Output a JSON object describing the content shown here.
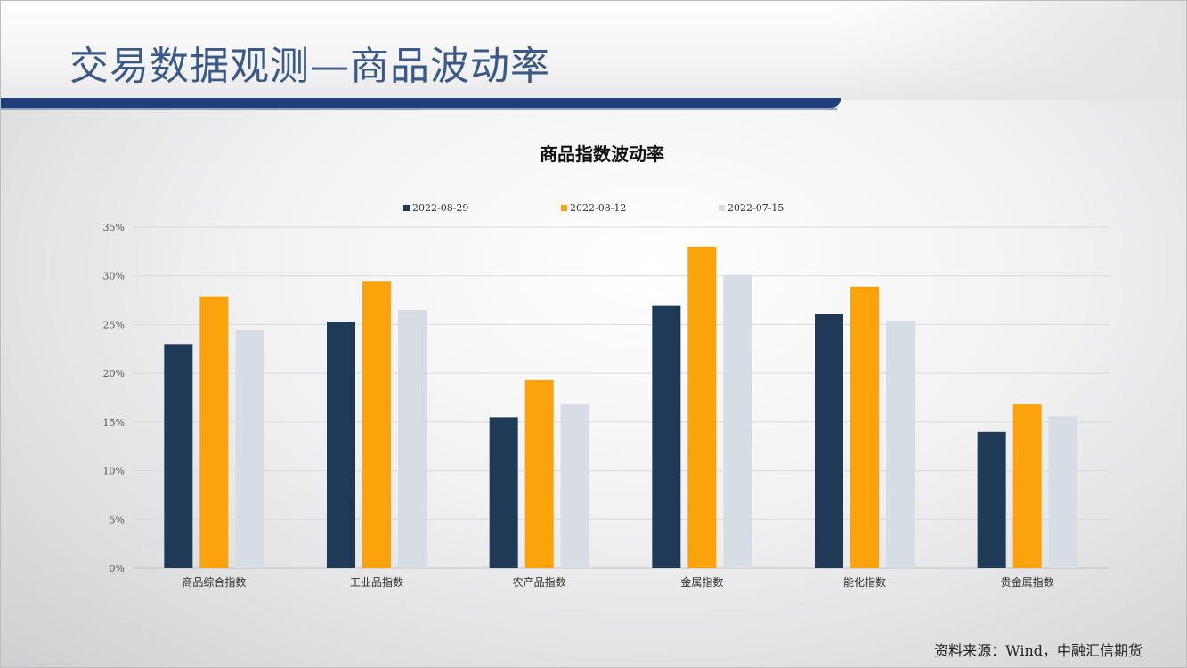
{
  "slide": {
    "title": "交易数据观测—商品波动率",
    "source": "资料来源：Wind，中融汇信期货"
  },
  "colors": {
    "title_text": "#3a5a86",
    "title_bar": "#1f3f7a",
    "series_1": "#1f3a56",
    "series_2": "#fca20a",
    "series_3": "#d7dde5"
  },
  "chart_data": {
    "type": "bar",
    "title": "商品指数波动率",
    "xlabel": "",
    "ylabel": "",
    "categories": [
      "商品综合指数",
      "工业品指数",
      "农产品指数",
      "金属指数",
      "能化指数",
      "贵金属指数"
    ],
    "series": [
      {
        "name": "2022-08-29",
        "color": "#1f3a56",
        "values": [
          0.23,
          0.253,
          0.155,
          0.269,
          0.261,
          0.14
        ]
      },
      {
        "name": "2022-08-12",
        "color": "#fca20a",
        "values": [
          0.279,
          0.294,
          0.193,
          0.33,
          0.289,
          0.168
        ]
      },
      {
        "name": "2022-07-15",
        "color": "#d7dde5",
        "values": [
          0.244,
          0.265,
          0.168,
          0.301,
          0.254,
          0.156
        ]
      }
    ],
    "ylim": [
      0,
      0.35
    ],
    "yticks": [
      0,
      0.05,
      0.1,
      0.15,
      0.2,
      0.25,
      0.3,
      0.35
    ],
    "ytick_labels": [
      "0%",
      "5%",
      "10%",
      "15%",
      "20%",
      "25%",
      "30%",
      "35%"
    ],
    "grid": true,
    "legend_position": "top"
  }
}
